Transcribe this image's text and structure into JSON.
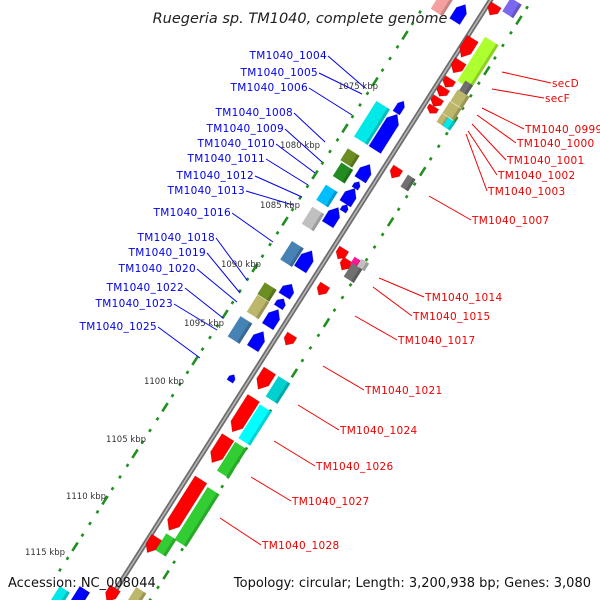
{
  "title": "Ruegeria sp. TM1040, complete genome",
  "footer": {
    "accession": "Accession: NC_008044",
    "summary": "Topology: circular; Length: 3,200,938 bp; Genes: 3,080"
  },
  "kbp_ticks": [
    "1075 kbp",
    "1080 kbp",
    "1085 kbp",
    "1090 kbp",
    "1095 kbp",
    "1100 kbp",
    "1105 kbp",
    "1110 kbp",
    "1115 kbp"
  ],
  "forward_labels": [
    "TM1040_1004",
    "TM1040_1005",
    "TM1040_1006",
    "TM1040_1008",
    "TM1040_1009",
    "TM1040_1010",
    "TM1040_1011",
    "TM1040_1012",
    "TM1040_1013",
    "TM1040_1016",
    "TM1040_1018",
    "TM1040_1019",
    "TM1040_1020",
    "TM1040_1022",
    "TM1040_1023",
    "TM1040_1025"
  ],
  "reverse_labels": [
    "secD",
    "secF",
    "TM1040_0999",
    "TM1040_1000",
    "TM1040_1001",
    "TM1040_1002",
    "TM1040_1003",
    "TM1040_1007",
    "TM1040_1014",
    "TM1040_1015",
    "TM1040_1017",
    "TM1040_1021",
    "TM1040_1024",
    "TM1040_1026",
    "TM1040_1027",
    "TM1040_1028"
  ],
  "colors": {
    "forward": "#0000ff",
    "reverse": "#ff0000",
    "tick": "#1f8f1f",
    "backbone": "#808080"
  }
}
